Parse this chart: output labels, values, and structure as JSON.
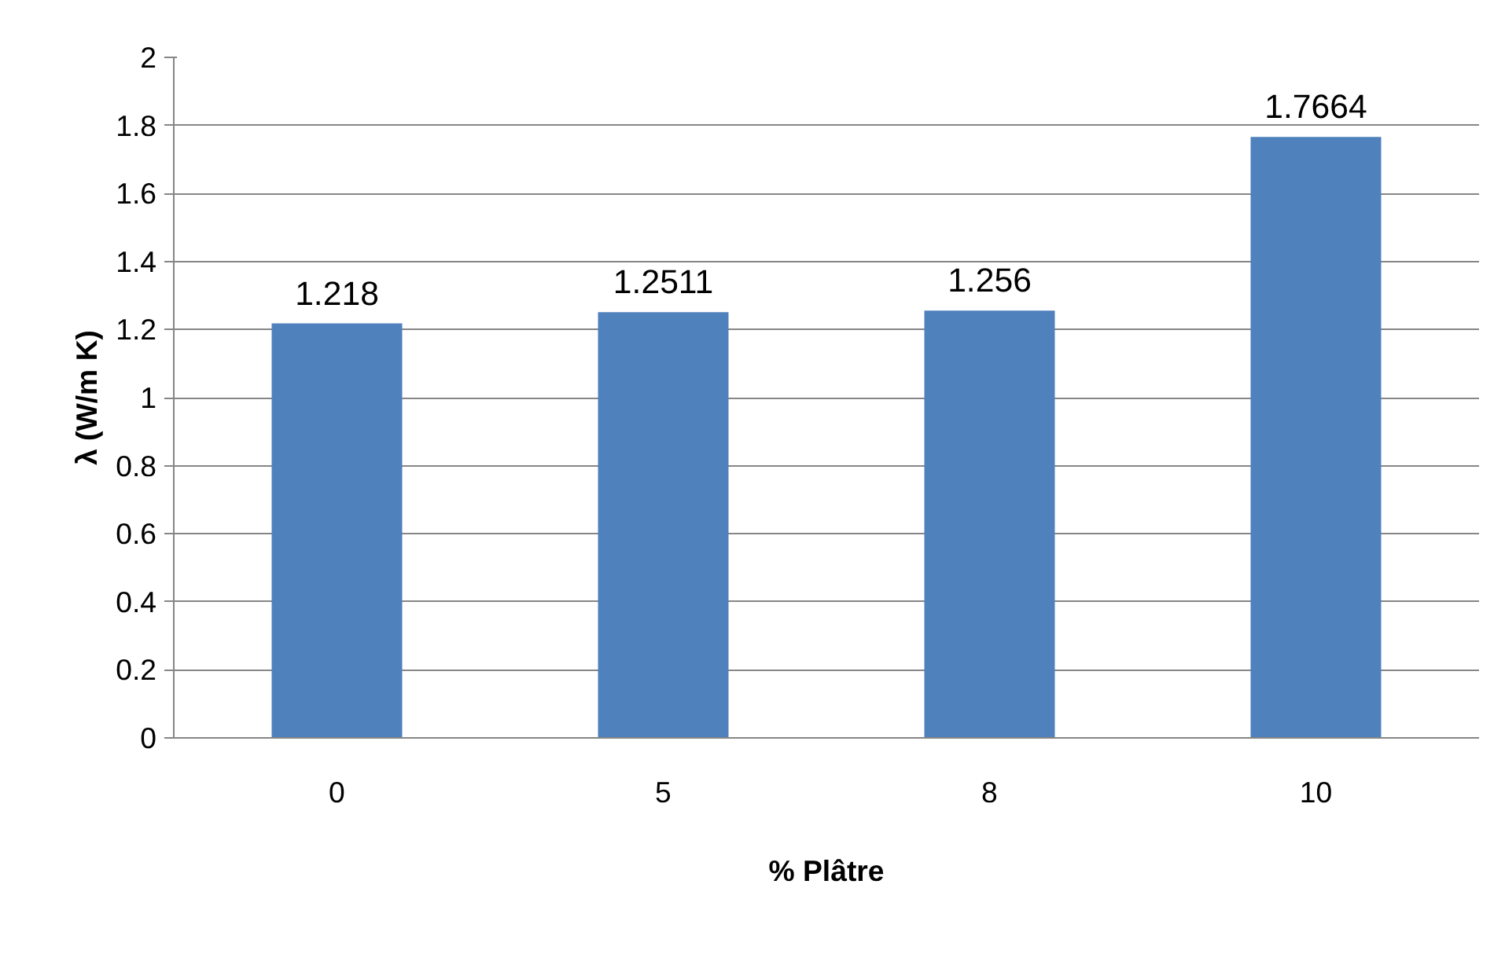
{
  "chart_data": {
    "type": "bar",
    "xlabel": "% Plâtre",
    "ylabel": "λ (W/m K)",
    "categories": [
      "0",
      "5",
      "8",
      "10"
    ],
    "values": [
      1.218,
      1.2511,
      1.256,
      1.7664
    ],
    "color": "#4f81bd",
    "ylim": [
      0,
      2
    ],
    "yticks": [
      0,
      {
        "value": 0.2,
        "label": "0.2"
      },
      {
        "value": 0.4,
        "label": "0.4"
      },
      {
        "value": 0.6,
        "label": "0.6"
      },
      {
        "value": 0.8,
        "label": "0.8"
      },
      1,
      {
        "value": 1.2,
        "label": "1.2"
      },
      {
        "value": 1.4,
        "label": "1.4"
      },
      {
        "value": 1.6,
        "label": "1.6"
      },
      {
        "value": 1.8,
        "label": "1.8"
      },
      2
    ],
    "grid": "y",
    "data_labels": true
  }
}
